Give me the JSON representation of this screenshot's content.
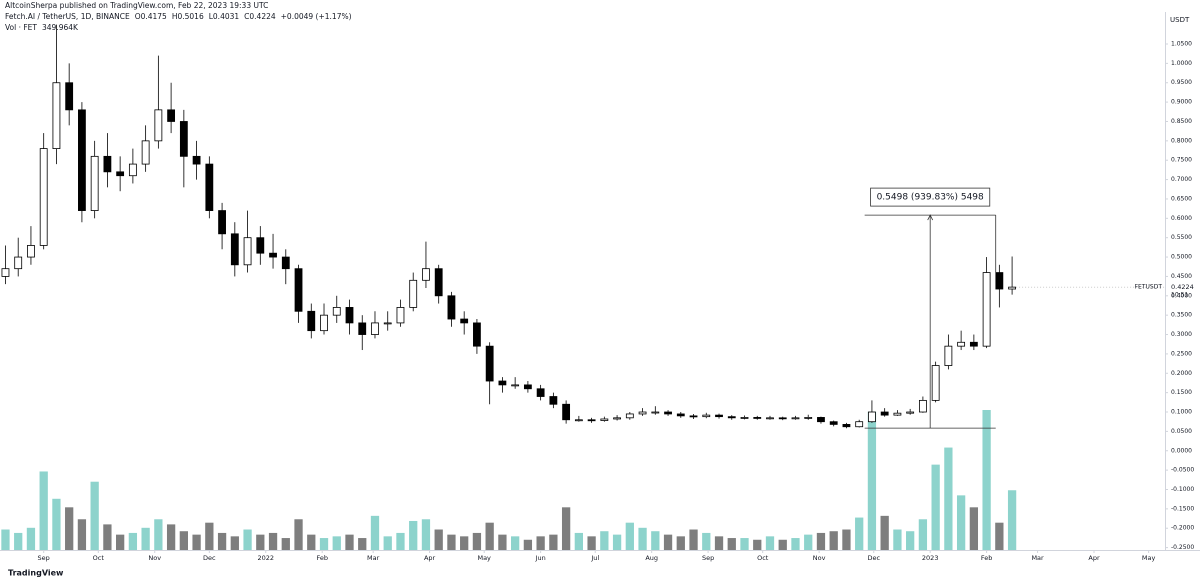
{
  "chart_data": {
    "type": "candlestick",
    "published": "AltcoinSherpa published on TradingView.com, Feb 22, 2023 19:33 UTC",
    "symbol": "Fetch.AI / TetherUS, 1D, BINANCE",
    "ohlc_text": [
      "O0.4175",
      "H0.5016",
      "L0.4031",
      "C0.4224"
    ],
    "change": "+0.0049 (+1.17%)",
    "volume_name": "Vol · FET",
    "volume_label": "349.964K",
    "y_unit": "USDT",
    "price_tag": "FETUSDT",
    "countdown": "10:51",
    "brand": "TradingView",
    "up_color": "#ffffff",
    "down_color": "#000000",
    "volume_up_color": "#8dd3cc",
    "volume_down_color": "#7e7e7e",
    "grid": false,
    "x": [
      3,
      10,
      17,
      24,
      31,
      38,
      45,
      52,
      59,
      66,
      73,
      80,
      87,
      94,
      101,
      108,
      115,
      122,
      129,
      136,
      143,
      150,
      157,
      164,
      171,
      178,
      185,
      192,
      199,
      206,
      213,
      220,
      227,
      234,
      241,
      248,
      255,
      262,
      269,
      276,
      283,
      290,
      297,
      304,
      311,
      318,
      325,
      332,
      339,
      346,
      353,
      360,
      367,
      374,
      381,
      388,
      395,
      402,
      409,
      416,
      423,
      430,
      437,
      444,
      451,
      458,
      465,
      472,
      479,
      486,
      493,
      500,
      507,
      514,
      521,
      528,
      535,
      542,
      549,
      556
    ],
    "open": [
      0.45,
      0.47,
      0.5,
      0.53,
      0.78,
      0.95,
      0.88,
      0.62,
      0.76,
      0.72,
      0.71,
      0.74,
      0.8,
      0.88,
      0.85,
      0.76,
      0.74,
      0.62,
      0.56,
      0.48,
      0.55,
      0.51,
      0.5,
      0.47,
      0.36,
      0.31,
      0.35,
      0.37,
      0.33,
      0.3,
      0.33,
      0.33,
      0.37,
      0.44,
      0.47,
      0.4,
      0.34,
      0.33,
      0.27,
      0.18,
      0.17,
      0.17,
      0.16,
      0.14,
      0.12,
      0.08,
      0.08,
      0.078,
      0.082,
      0.085,
      0.095,
      0.1,
      0.1,
      0.095,
      0.09,
      0.088,
      0.092,
      0.088,
      0.085,
      0.086,
      0.084,
      0.085,
      0.083,
      0.085,
      0.086,
      0.075,
      0.068,
      0.062,
      0.075,
      0.1,
      0.092,
      0.097,
      0.1,
      0.13,
      0.22,
      0.27,
      0.28,
      0.27,
      0.46,
      0.4175
    ],
    "high": [
      0.53,
      0.55,
      0.58,
      0.82,
      1.1,
      1.0,
      0.9,
      0.8,
      0.82,
      0.76,
      0.78,
      0.84,
      1.02,
      0.95,
      0.88,
      0.8,
      0.76,
      0.64,
      0.59,
      0.62,
      0.58,
      0.56,
      0.52,
      0.48,
      0.38,
      0.38,
      0.4,
      0.39,
      0.35,
      0.36,
      0.36,
      0.39,
      0.46,
      0.54,
      0.48,
      0.41,
      0.36,
      0.34,
      0.28,
      0.19,
      0.19,
      0.18,
      0.17,
      0.15,
      0.13,
      0.09,
      0.085,
      0.088,
      0.092,
      0.1,
      0.11,
      0.115,
      0.105,
      0.1,
      0.095,
      0.098,
      0.096,
      0.092,
      0.091,
      0.09,
      0.09,
      0.088,
      0.09,
      0.093,
      0.088,
      0.078,
      0.072,
      0.08,
      0.13,
      0.11,
      0.105,
      0.108,
      0.14,
      0.23,
      0.3,
      0.31,
      0.3,
      0.5,
      0.48,
      0.5016
    ],
    "low": [
      0.43,
      0.45,
      0.48,
      0.52,
      0.74,
      0.84,
      0.59,
      0.6,
      0.68,
      0.67,
      0.69,
      0.72,
      0.78,
      0.82,
      0.68,
      0.7,
      0.6,
      0.52,
      0.45,
      0.46,
      0.48,
      0.47,
      0.43,
      0.33,
      0.29,
      0.3,
      0.33,
      0.3,
      0.26,
      0.29,
      0.31,
      0.32,
      0.36,
      0.42,
      0.38,
      0.32,
      0.3,
      0.25,
      0.12,
      0.15,
      0.16,
      0.15,
      0.13,
      0.11,
      0.07,
      0.075,
      0.072,
      0.075,
      0.078,
      0.08,
      0.09,
      0.093,
      0.09,
      0.085,
      0.082,
      0.084,
      0.083,
      0.08,
      0.081,
      0.08,
      0.08,
      0.079,
      0.08,
      0.08,
      0.07,
      0.063,
      0.058,
      0.06,
      0.072,
      0.088,
      0.09,
      0.093,
      0.098,
      0.125,
      0.21,
      0.26,
      0.26,
      0.265,
      0.37,
      0.4031
    ],
    "close": [
      0.47,
      0.5,
      0.53,
      0.78,
      0.95,
      0.88,
      0.62,
      0.76,
      0.72,
      0.71,
      0.74,
      0.8,
      0.88,
      0.85,
      0.76,
      0.74,
      0.62,
      0.56,
      0.48,
      0.55,
      0.51,
      0.5,
      0.47,
      0.36,
      0.31,
      0.35,
      0.37,
      0.33,
      0.3,
      0.33,
      0.33,
      0.37,
      0.44,
      0.47,
      0.4,
      0.34,
      0.33,
      0.27,
      0.18,
      0.17,
      0.17,
      0.16,
      0.14,
      0.12,
      0.08,
      0.08,
      0.078,
      0.082,
      0.085,
      0.095,
      0.1,
      0.1,
      0.095,
      0.09,
      0.088,
      0.092,
      0.088,
      0.085,
      0.086,
      0.084,
      0.085,
      0.083,
      0.085,
      0.086,
      0.075,
      0.068,
      0.062,
      0.075,
      0.1,
      0.092,
      0.097,
      0.1,
      0.13,
      0.22,
      0.27,
      0.28,
      0.27,
      0.46,
      0.4175,
      0.4224
    ],
    "volume": [
      120000,
      100000,
      130000,
      460000,
      300000,
      250000,
      180000,
      400000,
      150000,
      90000,
      100000,
      130000,
      180000,
      150000,
      110000,
      90000,
      160000,
      100000,
      80000,
      120000,
      90000,
      100000,
      70000,
      180000,
      90000,
      70000,
      80000,
      90000,
      70000,
      200000,
      80000,
      100000,
      170000,
      180000,
      120000,
      90000,
      80000,
      100000,
      160000,
      90000,
      80000,
      60000,
      80000,
      90000,
      250000,
      100000,
      80000,
      110000,
      90000,
      160000,
      130000,
      110000,
      90000,
      80000,
      120000,
      100000,
      80000,
      70000,
      70000,
      60000,
      80000,
      60000,
      70000,
      90000,
      100000,
      110000,
      120000,
      190000,
      810000,
      200000,
      120000,
      110000,
      180000,
      500000,
      600000,
      320000,
      250000,
      820000,
      160000,
      349964
    ],
    "xlim": [
      0,
      640
    ],
    "xticks": [
      {
        "value": 24,
        "label": "Sep"
      },
      {
        "value": 54,
        "label": "Oct"
      },
      {
        "value": 85,
        "label": "Nov"
      },
      {
        "value": 115,
        "label": "Dec"
      },
      {
        "value": 146,
        "label": "2022"
      },
      {
        "value": 177,
        "label": "Feb"
      },
      {
        "value": 205,
        "label": "Mar"
      },
      {
        "value": 236,
        "label": "Apr"
      },
      {
        "value": 266,
        "label": "May"
      },
      {
        "value": 297,
        "label": "Jun"
      },
      {
        "value": 327,
        "label": "Jul"
      },
      {
        "value": 358,
        "label": "Aug"
      },
      {
        "value": 389,
        "label": "Sep"
      },
      {
        "value": 419,
        "label": "Oct"
      },
      {
        "value": 450,
        "label": "Nov"
      },
      {
        "value": 480,
        "label": "Dec"
      },
      {
        "value": 511,
        "label": "2023"
      },
      {
        "value": 542,
        "label": "Feb"
      },
      {
        "value": 570,
        "label": "Mar"
      },
      {
        "value": 601,
        "label": "Apr"
      },
      {
        "value": 631,
        "label": "May"
      }
    ],
    "ylim": [
      -0.2562,
      1.1326
    ],
    "yticks": [
      {
        "value": 1.05,
        "label": "1.0500"
      },
      {
        "value": 1.0,
        "label": "1.0000"
      },
      {
        "value": 0.95,
        "label": "0.9500"
      },
      {
        "value": 0.9,
        "label": "0.9000"
      },
      {
        "value": 0.85,
        "label": "0.8500"
      },
      {
        "value": 0.8,
        "label": "0.8000"
      },
      {
        "value": 0.75,
        "label": "0.7500"
      },
      {
        "value": 0.7,
        "label": "0.7000"
      },
      {
        "value": 0.65,
        "label": "0.6500"
      },
      {
        "value": 0.6,
        "label": "0.6000"
      },
      {
        "value": 0.55,
        "label": "0.5500"
      },
      {
        "value": 0.5,
        "label": "0.5000"
      },
      {
        "value": 0.45,
        "label": "0.4500"
      },
      {
        "value": 0.4,
        "label": "0.4000"
      },
      {
        "value": 0.35,
        "label": "0.3500"
      },
      {
        "value": 0.3,
        "label": "0.3000"
      },
      {
        "value": 0.25,
        "label": "0.2500"
      },
      {
        "value": 0.2,
        "label": "0.2000"
      },
      {
        "value": 0.15,
        "label": "0.1500"
      },
      {
        "value": 0.1,
        "label": "0.1000"
      },
      {
        "value": 0.05,
        "label": "0.0500"
      },
      {
        "value": 0,
        "label": "0.0000"
      },
      {
        "value": -0.05,
        "label": "-0.0500"
      },
      {
        "value": -0.1,
        "label": "-0.1000"
      },
      {
        "value": -0.15,
        "label": "-0.1500"
      },
      {
        "value": -0.2,
        "label": "-0.2000"
      },
      {
        "value": -0.25,
        "label": "-0.2500"
      }
    ],
    "measure": {
      "label": "0.5498 (939.83%) 5498",
      "from": 0.0585,
      "to": 0.6083,
      "x_from": 475,
      "x_to": 547,
      "x_at": 511
    }
  }
}
